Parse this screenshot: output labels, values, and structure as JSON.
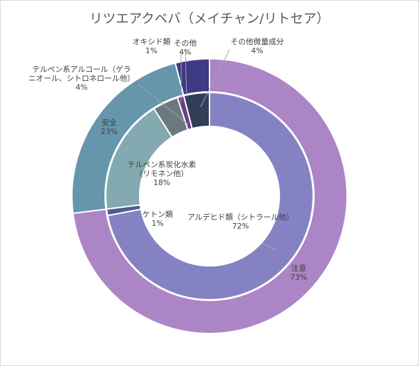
{
  "chart_data": {
    "type": "doughnut",
    "title": "リツエアクベバ（メイチャン/リトセア）",
    "rings": [
      {
        "ring": "outer",
        "slices": [
          {
            "label": "注意",
            "value": 73,
            "pct": "73%",
            "color": "#ab85c6"
          },
          {
            "label": "安全",
            "value": 23,
            "pct": "23%",
            "color": "#6596ab"
          },
          {
            "label": "その他",
            "value": 4,
            "pct": "4%",
            "color": "#3f3a85"
          }
        ]
      },
      {
        "ring": "inner",
        "slices": [
          {
            "label": "アルデヒド類（シトラール他）",
            "value": 72,
            "pct": "72%",
            "color": "#8582c4"
          },
          {
            "label": "ケトン類",
            "value": 1,
            "pct": "1%",
            "color": "#4e5f8d"
          },
          {
            "label": "テルペン系炭化水素（リモネン他）",
            "value": 18,
            "pct": "18%",
            "color": "#82aab0"
          },
          {
            "label": "テルペン系アルコール（ゲラニオール、シトロネロール他）",
            "value": 4,
            "pct": "4%",
            "color": "#6b7a80"
          },
          {
            "label": "オキシド類",
            "value": 1,
            "pct": "1%",
            "color": "#6a3f8a"
          },
          {
            "label": "その他微量成分",
            "value": 4,
            "pct": "4%",
            "color": "#323e58"
          }
        ]
      }
    ],
    "legend": "none"
  }
}
